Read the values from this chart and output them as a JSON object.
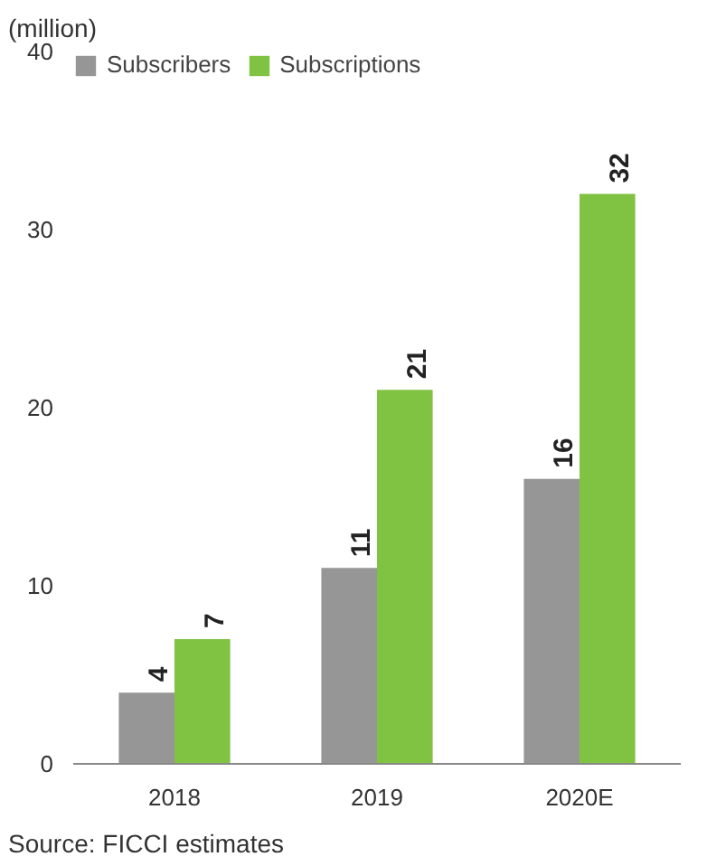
{
  "chart_data": {
    "type": "bar",
    "ylabel": "(million)",
    "categories": [
      "2018",
      "2019",
      "2020E"
    ],
    "series": [
      {
        "name": "Subscribers",
        "color": "#969696",
        "values": [
          4,
          11,
          16
        ]
      },
      {
        "name": "Subscriptions",
        "color": "#80c242",
        "values": [
          7,
          21,
          32
        ]
      }
    ],
    "ylim": [
      0,
      40
    ],
    "yticks": [
      0,
      10,
      20,
      30,
      40
    ],
    "grid": false,
    "legend": "top left",
    "data_labels": true,
    "annotations": [
      "Source: FICCI estimates"
    ]
  }
}
